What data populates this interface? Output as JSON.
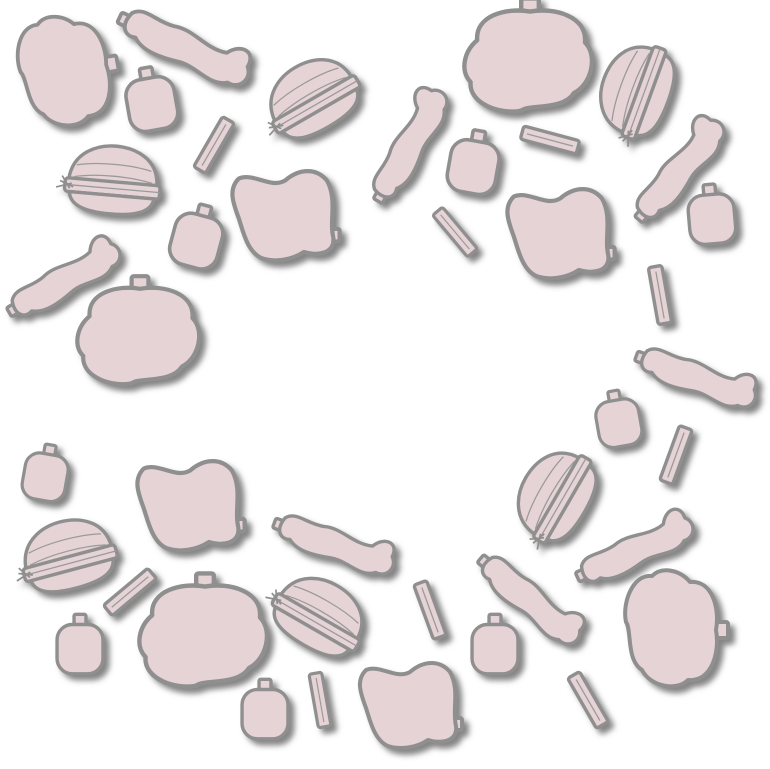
{
  "colors": {
    "fill": "#e6d3d6",
    "outline": "#8f8f8f",
    "shadow": "#7a7a7a",
    "lines": "#9a9a9a",
    "background": "#ffffff"
  },
  "shape_kinds": [
    "jar",
    "bone",
    "stick",
    "pot",
    "burger",
    "blob"
  ]
}
